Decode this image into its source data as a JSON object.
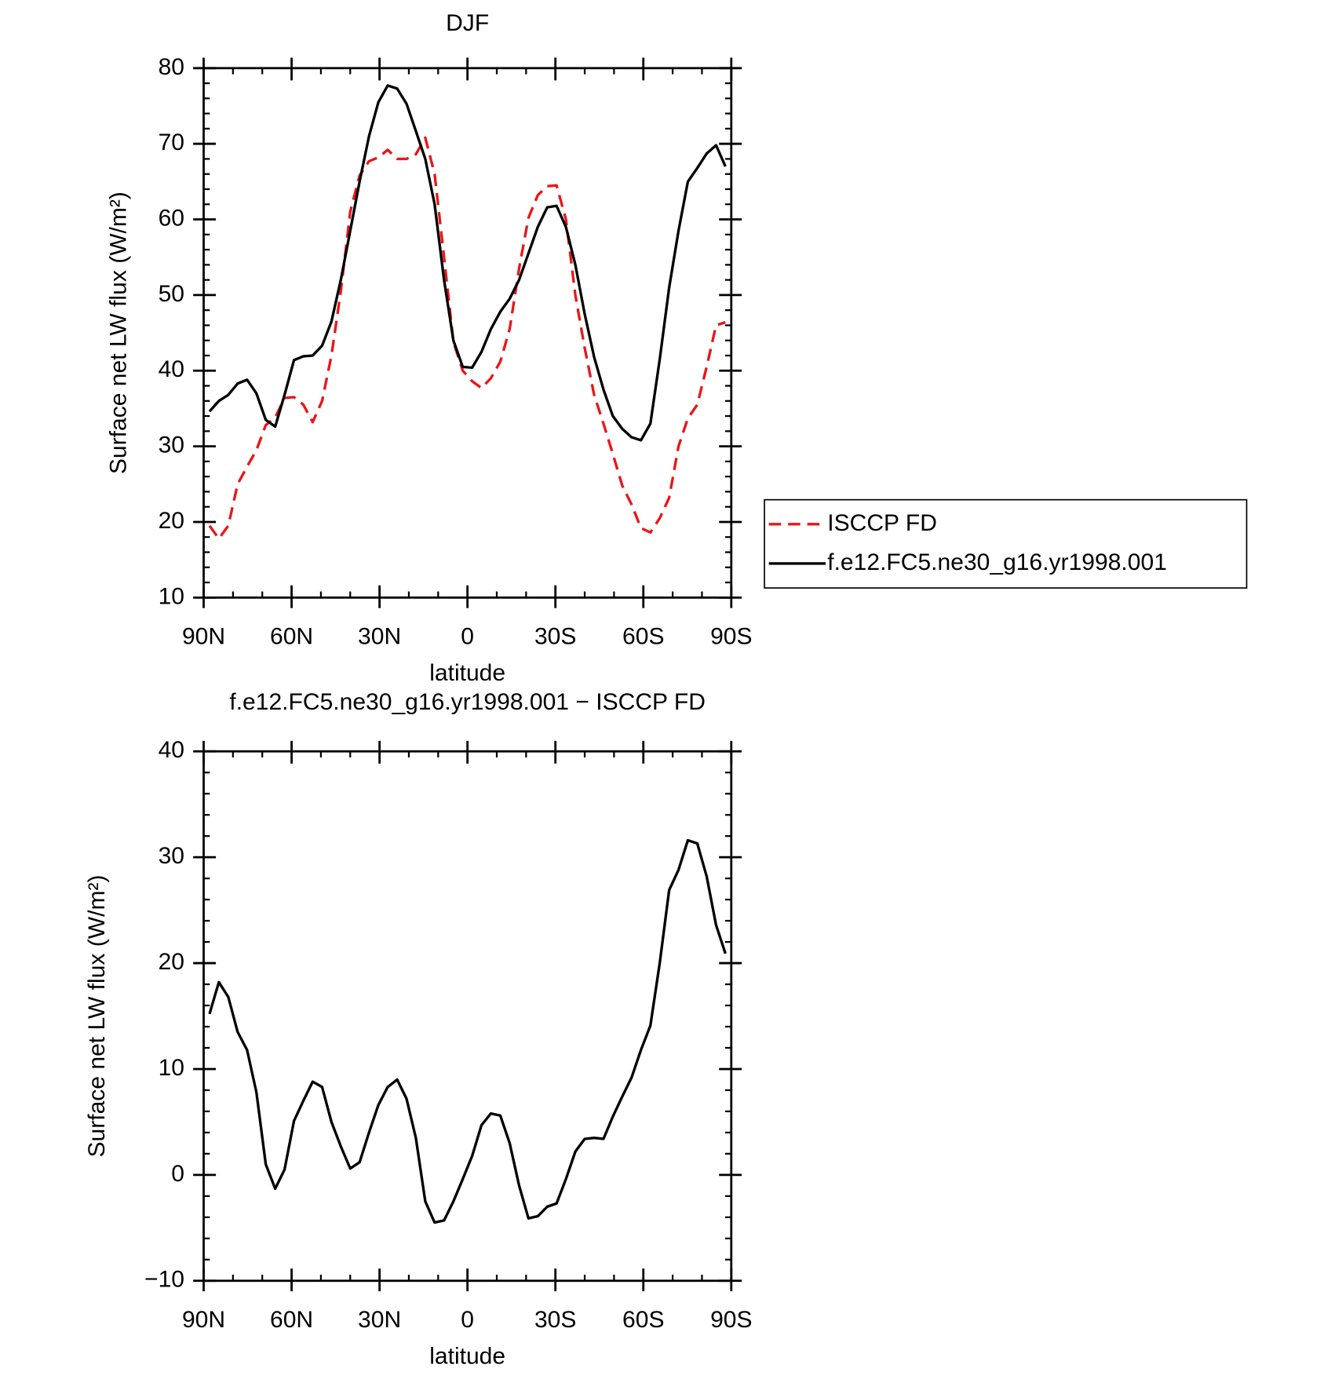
{
  "chart_data": [
    {
      "type": "line",
      "title": "DJF",
      "xlabel": "latitude",
      "ylabel": "Surface net LW flux (W/m²)",
      "xlim": [
        90,
        -90
      ],
      "xticks": [
        {
          "value": 90,
          "label": "90N"
        },
        {
          "value": 60,
          "label": "60N"
        },
        {
          "value": 30,
          "label": "30N"
        },
        0,
        {
          "value": -30,
          "label": "30S"
        },
        {
          "value": -60,
          "label": "60S"
        },
        {
          "value": -90,
          "label": "90S"
        }
      ],
      "ylim": [
        10,
        80
      ],
      "yticks": [
        10,
        20,
        30,
        40,
        50,
        60,
        70,
        80
      ],
      "legend": "right",
      "x": [
        88,
        84.8,
        81.6,
        78.4,
        75.2,
        72,
        68.8,
        65.6,
        62.4,
        59.2,
        56,
        52.8,
        49.6,
        46.4,
        43.2,
        40,
        36.8,
        33.6,
        30.4,
        27.2,
        24,
        20.8,
        17.6,
        14.4,
        11.2,
        8,
        4.8,
        1.6,
        -1.6,
        -4.8,
        -8,
        -11.2,
        -14.4,
        -17.6,
        -20.8,
        -24,
        -27.2,
        -30.4,
        -33.6,
        -36.8,
        -40,
        -43.2,
        -46.4,
        -49.6,
        -52.8,
        -56,
        -59.2,
        -62.4,
        -65.6,
        -68.8,
        -72,
        -75.2,
        -78.4,
        -81.6,
        -84.8,
        -88
      ],
      "series": [
        {
          "name": "ISCCP FD",
          "color": "#e8171b",
          "linestyle": "dashed",
          "values": [
            19.5,
            17.8,
            19.5,
            25,
            27.3,
            29.5,
            32.8,
            33.8,
            36.4,
            36.5,
            35.5,
            33.2,
            36,
            42,
            50.5,
            61,
            65.8,
            67.7,
            68.2,
            69.2,
            68,
            68,
            68.6,
            70.8,
            66,
            55,
            43.8,
            40,
            38.6,
            37.7,
            39,
            41.2,
            45.5,
            53.5,
            60.2,
            63.2,
            64.4,
            64.5,
            60,
            50,
            43,
            36.8,
            33,
            29,
            24.8,
            22.3,
            19.2,
            18.6,
            20.5,
            23.2,
            30,
            33.7,
            35.5,
            40.5,
            46,
            46.4
          ]
        },
        {
          "name": "f.e12.FC5.ne30_g16.yr1998.001",
          "color": "#000000",
          "linestyle": "solid",
          "values": [
            34.6,
            36,
            36.8,
            38.3,
            38.8,
            37,
            33.5,
            32.6,
            36.8,
            41.4,
            41.9,
            42,
            43.3,
            46.5,
            52,
            58.5,
            65,
            71,
            75.5,
            77.7,
            77.3,
            75.3,
            71.7,
            68,
            62,
            52,
            44,
            40.5,
            40.4,
            42.5,
            45.5,
            47.8,
            49.5,
            52,
            55.5,
            59,
            61.6,
            61.8,
            59,
            54,
            47.5,
            41.8,
            37.5,
            34,
            32.3,
            31.2,
            30.8,
            33,
            41.5,
            51,
            58.5,
            65,
            66.8,
            68.7,
            69.8,
            67
          ]
        }
      ]
    },
    {
      "type": "line",
      "title": "f.e12.FC5.ne30_g16.yr1998.001 − ISCCP FD",
      "xlabel": "latitude",
      "ylabel": "Surface net LW flux (W/m²)",
      "xlim": [
        90,
        -90
      ],
      "xticks": [
        {
          "value": 90,
          "label": "90N"
        },
        {
          "value": 60,
          "label": "60N"
        },
        {
          "value": 30,
          "label": "30N"
        },
        0,
        {
          "value": -30,
          "label": "30S"
        },
        {
          "value": -60,
          "label": "60S"
        },
        {
          "value": -90,
          "label": "90S"
        }
      ],
      "ylim": [
        -10,
        40
      ],
      "yticks": [
        {
          "value": -10,
          "label": "−10"
        },
        0,
        10,
        20,
        30,
        40
      ],
      "x": [
        88,
        84.8,
        81.6,
        78.4,
        75.2,
        72,
        68.8,
        65.6,
        62.4,
        59.2,
        56,
        52.8,
        49.6,
        46.4,
        43.2,
        40,
        36.8,
        33.6,
        30.4,
        27.2,
        24,
        20.8,
        17.6,
        14.4,
        11.2,
        8,
        4.8,
        1.6,
        -1.6,
        -4.8,
        -8,
        -11.2,
        -14.4,
        -17.6,
        -20.8,
        -24,
        -27.2,
        -30.4,
        -33.6,
        -36.8,
        -40,
        -43.2,
        -46.4,
        -49.6,
        -52.8,
        -56,
        -59.2,
        -62.4,
        -65.6,
        -68.8,
        -72,
        -75.2,
        -78.4,
        -81.6,
        -84.8,
        -88
      ],
      "series": [
        {
          "color": "#000000",
          "linestyle": "solid",
          "values": [
            15.2,
            18.2,
            16.8,
            13.5,
            11.8,
            7.8,
            1,
            -1.3,
            0.5,
            5.1,
            7,
            8.8,
            8.3,
            5,
            2.7,
            0.6,
            1.2,
            4,
            6.6,
            8.3,
            9,
            7.2,
            3.5,
            -2.5,
            -4.5,
            -4.3,
            -2.5,
            -0.4,
            1.8,
            4.7,
            5.8,
            5.6,
            3,
            -1,
            -4.1,
            -3.9,
            -3,
            -2.7,
            -0.4,
            2.2,
            3.4,
            3.5,
            3.4,
            5.5,
            7.4,
            9.2,
            11.8,
            14.1,
            20,
            26.9,
            28.8,
            31.6,
            31.3,
            28.2,
            23.6,
            20.9
          ]
        }
      ]
    }
  ]
}
